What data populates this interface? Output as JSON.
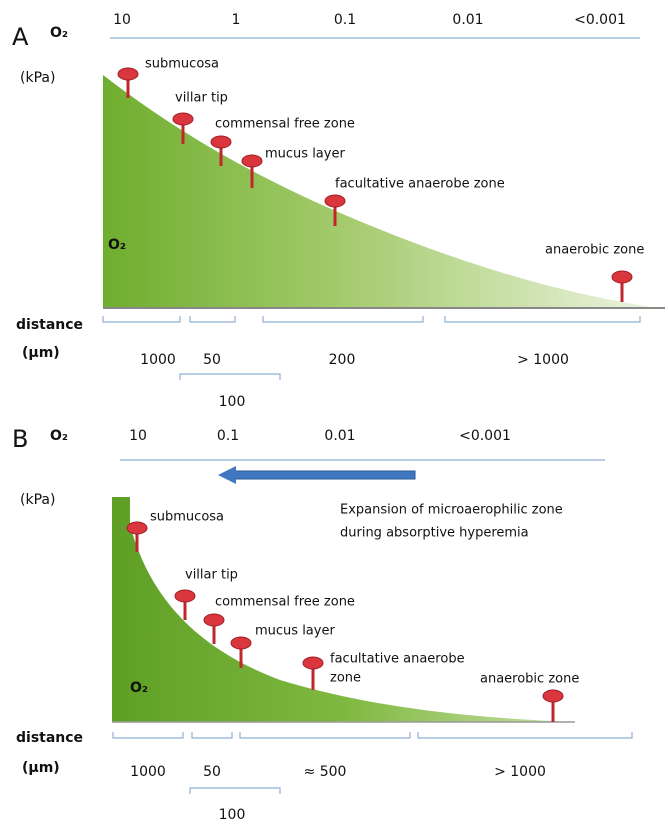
{
  "panel_a": {
    "label": "A",
    "o2_label": "O₂",
    "scale": [
      "10",
      "1",
      "0.1",
      "0.01",
      "<0.001"
    ],
    "unit": "(kPa)",
    "zones": [
      "submucosa",
      "villar tip",
      "commensal free zone",
      "mucus layer",
      "facultative anaerobe zone",
      "anaerobic zone"
    ],
    "o2_inside": "O₂",
    "distance": "distance",
    "distance_unit": "(µm)",
    "distances": [
      "1000",
      "50",
      "200",
      "> 1000",
      "100"
    ]
  },
  "panel_b": {
    "label": "B",
    "o2_label": "O₂",
    "scale": [
      "10",
      "0.1",
      "0.01",
      "<0.001"
    ],
    "unit": "(kPa)",
    "annotation": [
      "Expansion of microaerophilic zone",
      "during absorptive hyperemia"
    ],
    "zones": [
      "submucosa",
      "villar tip",
      "commensal free zone",
      "mucus layer",
      [
        "facultative anaerobe",
        "zone"
      ],
      "anaerobic zone"
    ],
    "o2_inside": "O₂",
    "distance": "distance",
    "distance_unit": "(µm)",
    "distances": [
      "1000",
      "50",
      "≈ 500",
      "> 1000",
      "100"
    ]
  }
}
